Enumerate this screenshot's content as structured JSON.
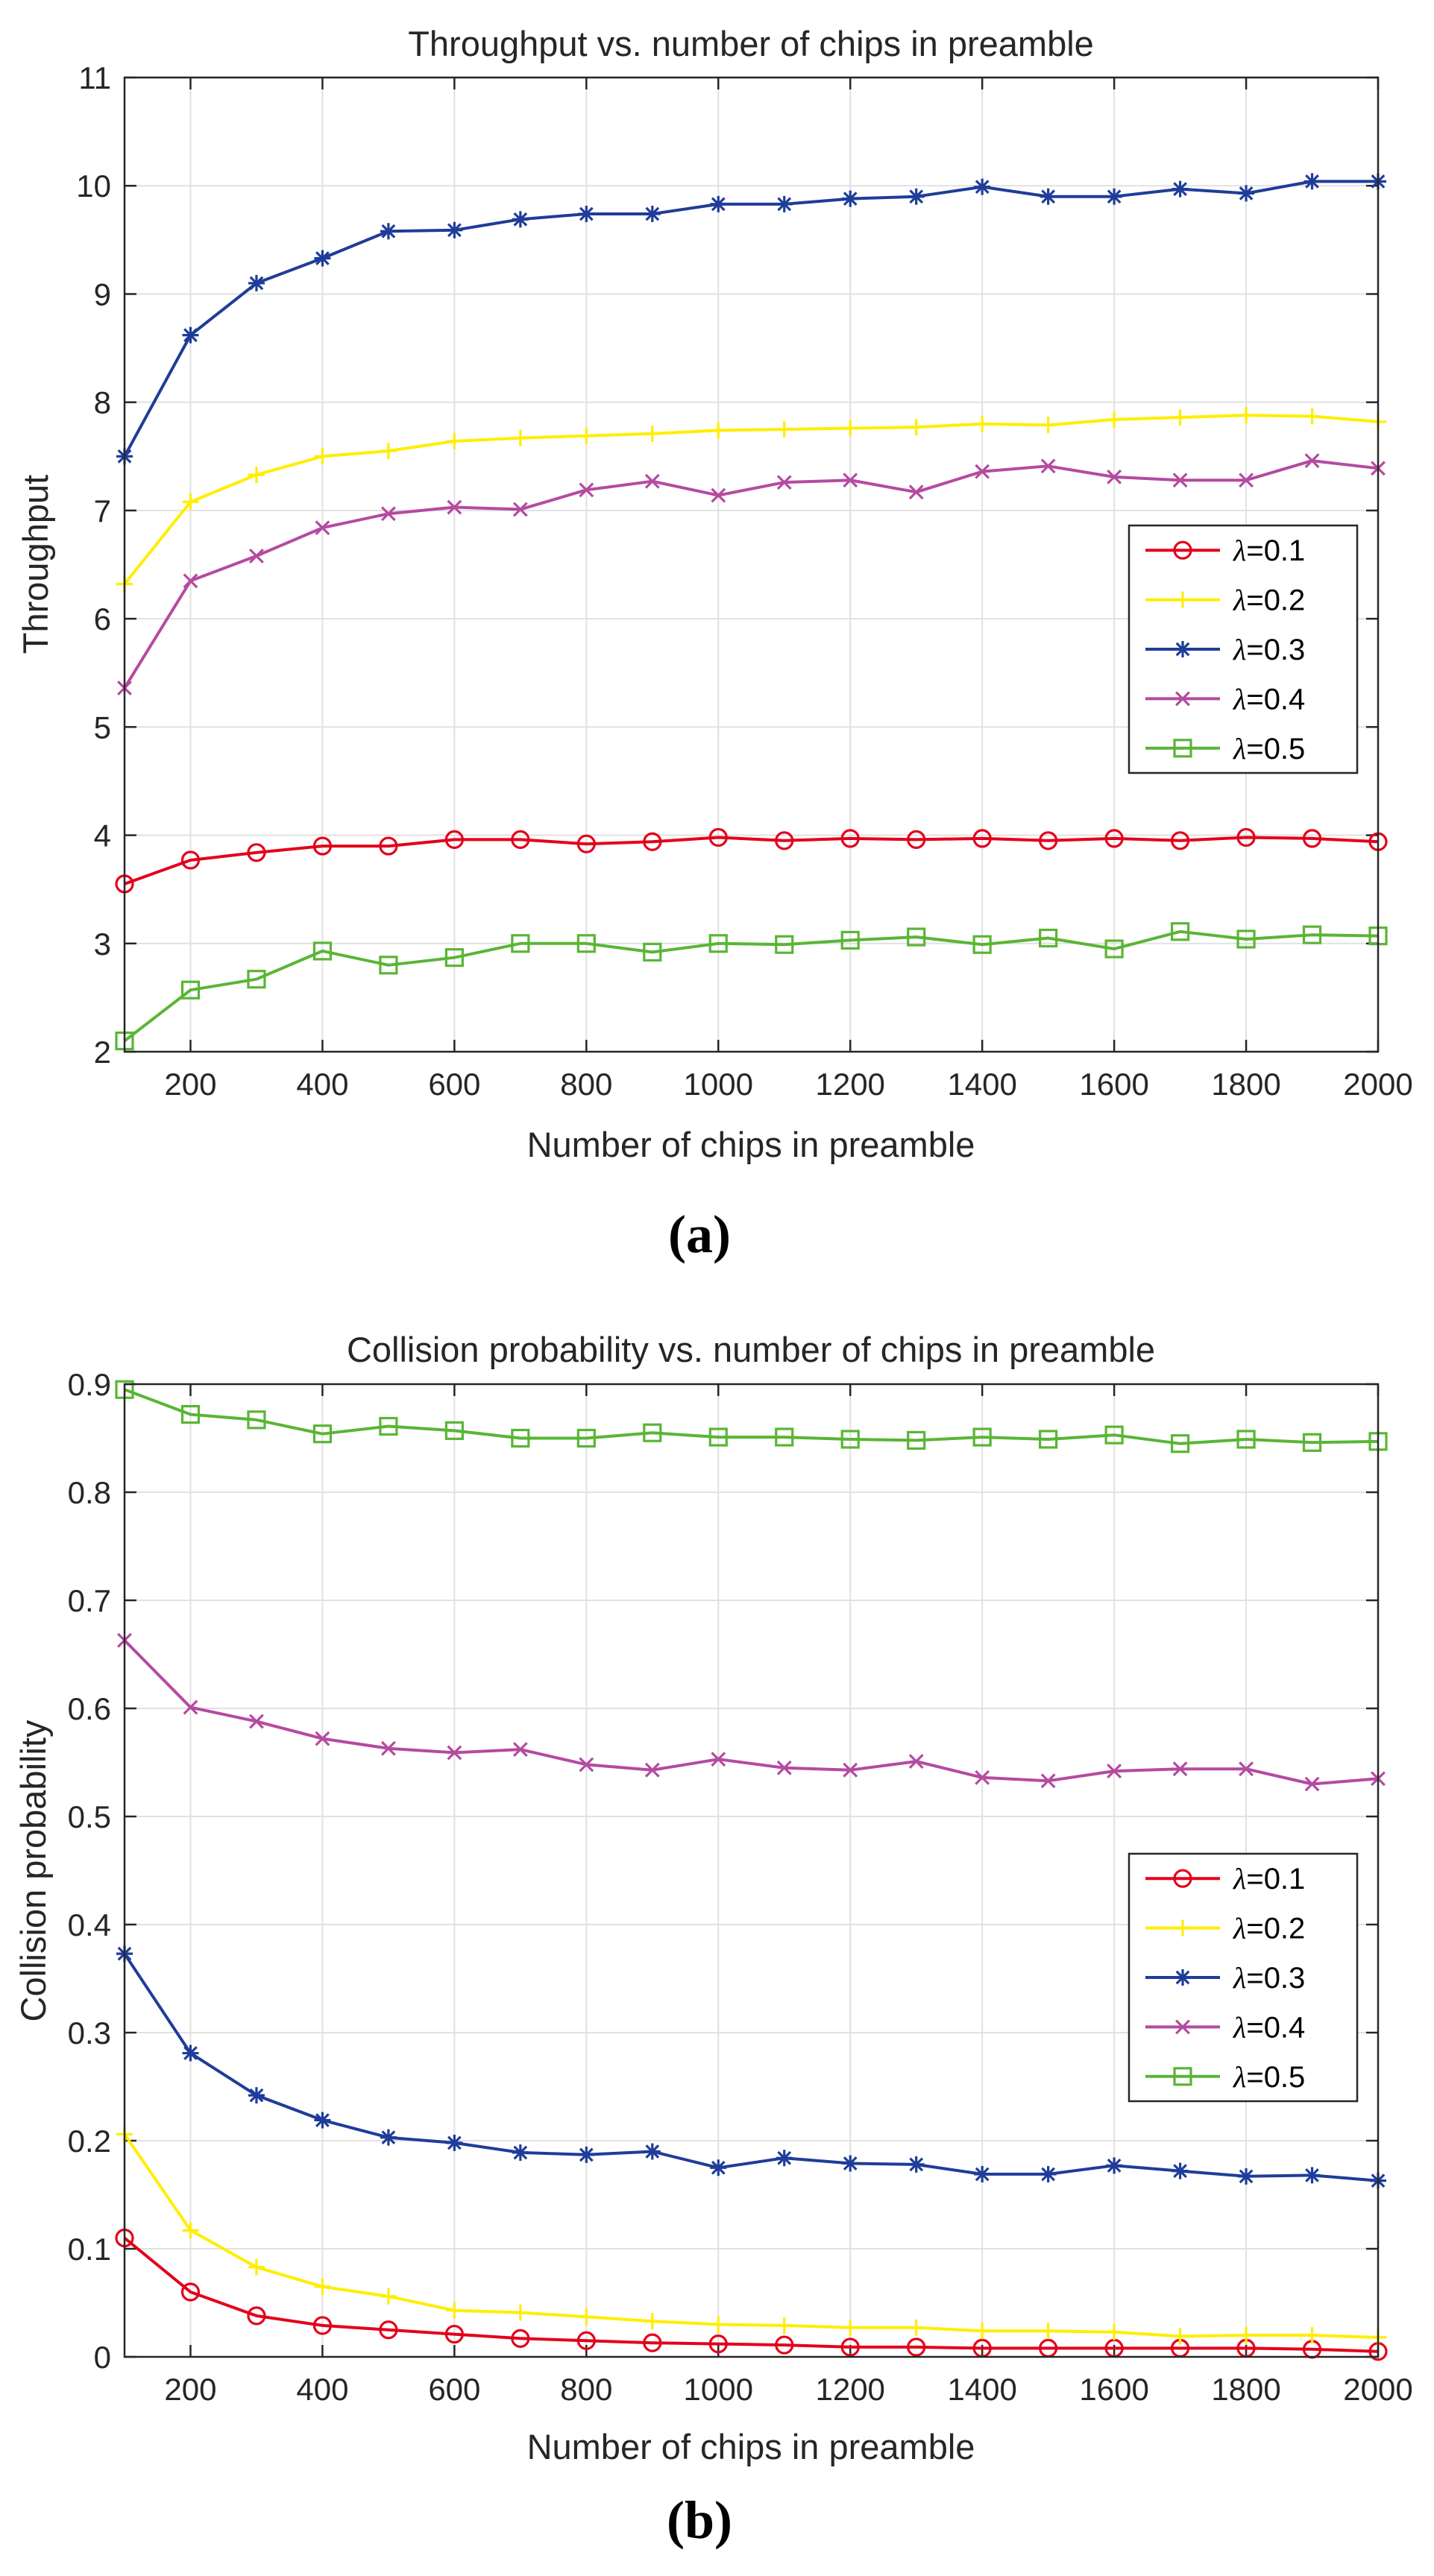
{
  "chart_data": [
    {
      "type": "line",
      "title": "Throughput vs. number of chips in preamble",
      "xlabel": "Number of chips in preamble",
      "ylabel": "Throughput",
      "caption": "(a)",
      "xlim": [
        100,
        2000
      ],
      "ylim": [
        2,
        11
      ],
      "xticks": [
        200,
        400,
        600,
        800,
        1000,
        1200,
        1400,
        1600,
        1800,
        2000
      ],
      "yticks": [
        2,
        3,
        4,
        5,
        6,
        7,
        8,
        9,
        10,
        11
      ],
      "ytick_labels": [
        "2",
        "3",
        "4",
        "5",
        "6",
        "7",
        "8",
        "9",
        "10",
        "11"
      ],
      "grid": true,
      "legend_position": "center-right",
      "x": [
        100,
        200,
        300,
        400,
        500,
        600,
        700,
        800,
        900,
        1000,
        1100,
        1200,
        1300,
        1400,
        1500,
        1600,
        1700,
        1800,
        1900,
        2000
      ],
      "series": [
        {
          "name": "λ=0.1",
          "lambda": "0.1",
          "color": "#e3001b",
          "marker": "circle",
          "values": [
            3.55,
            3.77,
            3.84,
            3.9,
            3.9,
            3.96,
            3.96,
            3.92,
            3.94,
            3.98,
            3.95,
            3.97,
            3.96,
            3.97,
            3.95,
            3.97,
            3.95,
            3.98,
            3.97,
            3.94
          ]
        },
        {
          "name": "λ=0.2",
          "lambda": "0.2",
          "color": "#ffee00",
          "marker": "plus",
          "values": [
            6.32,
            7.08,
            7.33,
            7.5,
            7.55,
            7.64,
            7.67,
            7.69,
            7.71,
            7.74,
            7.75,
            7.76,
            7.77,
            7.8,
            7.79,
            7.84,
            7.86,
            7.88,
            7.87,
            7.82
          ]
        },
        {
          "name": "λ=0.3",
          "lambda": "0.3",
          "color": "#1f3c99",
          "marker": "star",
          "values": [
            7.5,
            8.62,
            9.1,
            9.33,
            9.58,
            9.59,
            9.69,
            9.74,
            9.74,
            9.83,
            9.83,
            9.88,
            9.9,
            9.99,
            9.9,
            9.9,
            9.97,
            9.93,
            10.04,
            10.04
          ]
        },
        {
          "name": "λ=0.4",
          "lambda": "0.4",
          "color": "#b54aa0",
          "marker": "x",
          "values": [
            5.36,
            6.35,
            6.58,
            6.84,
            6.97,
            7.03,
            7.01,
            7.19,
            7.27,
            7.14,
            7.26,
            7.28,
            7.17,
            7.36,
            7.41,
            7.31,
            7.28,
            7.28,
            7.46,
            7.39
          ]
        },
        {
          "name": "λ=0.5",
          "lambda": "0.5",
          "color": "#5ab535",
          "marker": "square",
          "values": [
            2.1,
            2.57,
            2.67,
            2.93,
            2.8,
            2.87,
            3.0,
            3.0,
            2.92,
            3.0,
            2.99,
            3.03,
            3.06,
            2.99,
            3.05,
            2.95,
            3.11,
            3.04,
            3.08,
            3.07
          ]
        }
      ]
    },
    {
      "type": "line",
      "title": "Collision probability vs. number of chips in preamble",
      "xlabel": "Number of chips in preamble",
      "ylabel": "Collision probability",
      "caption": "(b)",
      "xlim": [
        100,
        2000
      ],
      "ylim": [
        0,
        0.9
      ],
      "xticks": [
        200,
        400,
        600,
        800,
        1000,
        1200,
        1400,
        1600,
        1800,
        2000
      ],
      "yticks": [
        0,
        0.1,
        0.2,
        0.3,
        0.4,
        0.5,
        0.6,
        0.7,
        0.8,
        0.9
      ],
      "ytick_labels": [
        "0",
        "0.1",
        "0.2",
        "0.3",
        "0.4",
        "0.5",
        "0.6",
        "0.7",
        "0.8",
        "0.9"
      ],
      "grid": true,
      "legend_position": "lower-right",
      "x": [
        100,
        200,
        300,
        400,
        500,
        600,
        700,
        800,
        900,
        1000,
        1100,
        1200,
        1300,
        1400,
        1500,
        1600,
        1700,
        1800,
        1900,
        2000
      ],
      "series": [
        {
          "name": "λ=0.1",
          "lambda": "0.1",
          "color": "#e3001b",
          "marker": "circle",
          "values": [
            0.11,
            0.06,
            0.038,
            0.029,
            0.025,
            0.021,
            0.017,
            0.015,
            0.013,
            0.012,
            0.011,
            0.009,
            0.009,
            0.008,
            0.008,
            0.008,
            0.008,
            0.008,
            0.007,
            0.005
          ]
        },
        {
          "name": "λ=0.2",
          "lambda": "0.2",
          "color": "#ffee00",
          "marker": "plus",
          "values": [
            0.206,
            0.117,
            0.083,
            0.065,
            0.056,
            0.043,
            0.041,
            0.037,
            0.033,
            0.03,
            0.029,
            0.027,
            0.027,
            0.024,
            0.024,
            0.023,
            0.019,
            0.02,
            0.02,
            0.018
          ]
        },
        {
          "name": "λ=0.3",
          "lambda": "0.3",
          "color": "#1f3c99",
          "marker": "star",
          "values": [
            0.373,
            0.281,
            0.242,
            0.219,
            0.203,
            0.198,
            0.189,
            0.187,
            0.19,
            0.175,
            0.184,
            0.179,
            0.178,
            0.169,
            0.169,
            0.177,
            0.172,
            0.167,
            0.168,
            0.163
          ]
        },
        {
          "name": "λ=0.4",
          "lambda": "0.4",
          "color": "#b54aa0",
          "marker": "x",
          "values": [
            0.663,
            0.601,
            0.588,
            0.572,
            0.563,
            0.559,
            0.562,
            0.548,
            0.543,
            0.553,
            0.545,
            0.543,
            0.551,
            0.536,
            0.533,
            0.542,
            0.544,
            0.544,
            0.53,
            0.535
          ]
        },
        {
          "name": "λ=0.5",
          "lambda": "0.5",
          "color": "#5ab535",
          "marker": "square",
          "values": [
            0.895,
            0.872,
            0.867,
            0.854,
            0.861,
            0.857,
            0.85,
            0.85,
            0.855,
            0.851,
            0.851,
            0.849,
            0.848,
            0.851,
            0.849,
            0.853,
            0.845,
            0.849,
            0.846,
            0.847
          ]
        }
      ]
    }
  ]
}
